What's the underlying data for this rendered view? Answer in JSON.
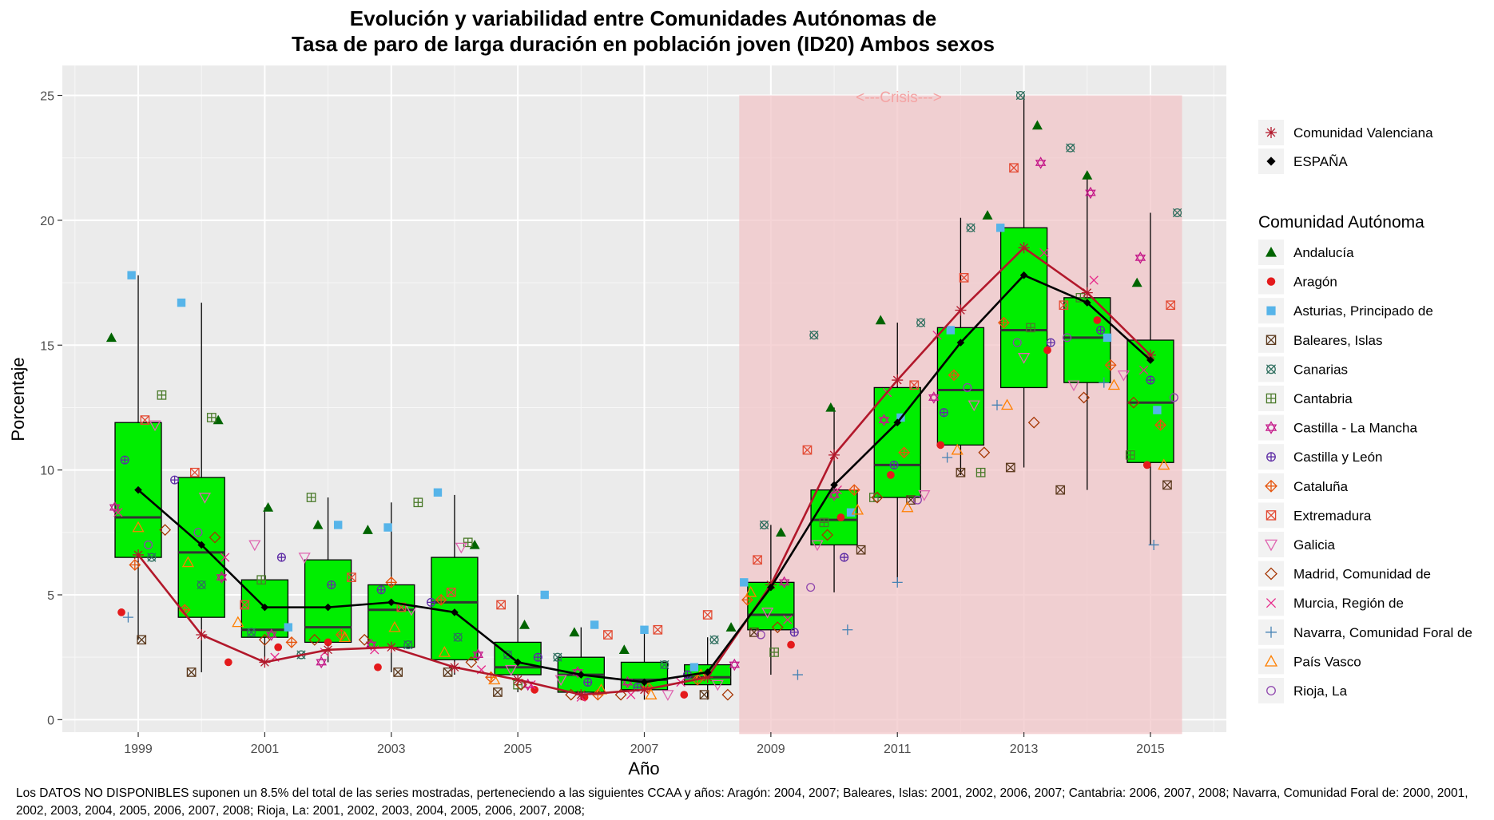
{
  "chart_data": {
    "type": "box",
    "title_line1": "Evolución y variabilidad entre Comunidades Autónomas de",
    "title_line2": "Tasa de paro de larga duración en población joven (ID20) Ambos sexos",
    "xlabel": "Año",
    "ylabel": "Porcentaje",
    "ylim": [
      -0.5,
      26.2
    ],
    "xlim": [
      1997.8,
      2016.2
    ],
    "x_ticks": [
      1999,
      2001,
      2003,
      2005,
      2007,
      2009,
      2011,
      2013,
      2015
    ],
    "y_ticks": [
      0,
      5,
      10,
      15,
      20,
      25
    ],
    "grid": true,
    "crisis": {
      "label": "<---Crisis--->",
      "x_start": 2008.5,
      "x_end": 2015.5,
      "y_top": 25
    },
    "colors": {
      "panel": "#ebebeb",
      "box_fill": "#00ee00",
      "crisis": "#f2c5c8",
      "espana": "#000000",
      "valenciana": "#b2182b"
    },
    "years": [
      1999,
      2000,
      2001,
      2002,
      2003,
      2004,
      2005,
      2006,
      2007,
      2008,
      2009,
      2010,
      2011,
      2012,
      2013,
      2014,
      2015
    ],
    "boxes": [
      {
        "year": 1999,
        "q1": 6.5,
        "median": 8.1,
        "q3": 11.9,
        "lo": 3.2,
        "hi": 17.8
      },
      {
        "year": 2000,
        "q1": 4.1,
        "median": 6.7,
        "q3": 9.7,
        "lo": 1.9,
        "hi": 16.7
      },
      {
        "year": 2001,
        "q1": 3.3,
        "median": 3.6,
        "q3": 5.6,
        "lo": 2.2,
        "hi": 8.5
      },
      {
        "year": 2002,
        "q1": 3.1,
        "median": 3.7,
        "q3": 6.4,
        "lo": 2.3,
        "hi": 8.9
      },
      {
        "year": 2003,
        "q1": 2.9,
        "median": 4.4,
        "q3": 5.4,
        "lo": 1.9,
        "hi": 8.7
      },
      {
        "year": 2004,
        "q1": 2.4,
        "median": 4.7,
        "q3": 6.5,
        "lo": 1.8,
        "hi": 9.0
      },
      {
        "year": 2005,
        "q1": 1.8,
        "median": 2.1,
        "q3": 3.1,
        "lo": 1.1,
        "hi": 5.0
      },
      {
        "year": 2006,
        "q1": 1.1,
        "median": 1.8,
        "q3": 2.5,
        "lo": 0.8,
        "hi": 3.7
      },
      {
        "year": 2007,
        "q1": 1.2,
        "median": 1.6,
        "q3": 2.3,
        "lo": 0.8,
        "hi": 3.6
      },
      {
        "year": 2008,
        "q1": 1.4,
        "median": 1.7,
        "q3": 2.2,
        "lo": 0.8,
        "hi": 3.3
      },
      {
        "year": 2009,
        "q1": 3.6,
        "median": 4.2,
        "q3": 5.5,
        "lo": 1.8,
        "hi": 7.8
      },
      {
        "year": 2010,
        "q1": 7.0,
        "median": 8.0,
        "q3": 9.2,
        "lo": 5.1,
        "hi": 12.5
      },
      {
        "year": 2011,
        "q1": 8.9,
        "median": 10.2,
        "q3": 13.3,
        "lo": 5.5,
        "hi": 15.9
      },
      {
        "year": 2012,
        "q1": 11.0,
        "median": 13.2,
        "q3": 15.7,
        "lo": 9.8,
        "hi": 20.1
      },
      {
        "year": 2013,
        "q1": 13.3,
        "median": 15.6,
        "q3": 19.7,
        "lo": 10.1,
        "hi": 25.0
      },
      {
        "year": 2014,
        "q1": 13.5,
        "median": 15.3,
        "q3": 16.9,
        "lo": 9.2,
        "hi": 21.8
      },
      {
        "year": 2015,
        "q1": 10.3,
        "median": 12.7,
        "q3": 15.2,
        "lo": 7.0,
        "hi": 20.3
      }
    ],
    "legend_top": [
      {
        "label": "Comunidad Valenciana",
        "symbol": "asterisk",
        "color": "#b2182b"
      },
      {
        "label": "ESPAÑA",
        "symbol": "diamond",
        "color": "#000000"
      }
    ],
    "legend_title": "Comunidad Autónoma",
    "legend": [
      {
        "label": "Andalucía",
        "symbol": "triangle",
        "color": "#006400"
      },
      {
        "label": "Aragón",
        "symbol": "dot",
        "color": "#e41a1c"
      },
      {
        "label": "Asturias, Principado de",
        "symbol": "square",
        "color": "#56b4e9"
      },
      {
        "label": "Baleares, Islas",
        "symbol": "square-x",
        "color": "#5c3a1e"
      },
      {
        "label": "Canarias",
        "symbol": "square-cross",
        "color": "#2f6f5f"
      },
      {
        "label": "Cantabria",
        "symbol": "square-plus",
        "color": "#4a7a2a"
      },
      {
        "label": "Castilla - La Mancha",
        "symbol": "star-david",
        "color": "#c51b8a"
      },
      {
        "label": "Castilla y León",
        "symbol": "circle-plus",
        "color": "#5e2ca5"
      },
      {
        "label": "Cataluña",
        "symbol": "diamond-plus",
        "color": "#e6550d"
      },
      {
        "label": "Extremadura",
        "symbol": "square-x",
        "color": "#e34a33"
      },
      {
        "label": "Galicia",
        "symbol": "triangle-down",
        "color": "#df65b0"
      },
      {
        "label": "Madrid, Comunidad de",
        "symbol": "diamond-open",
        "color": "#a63603"
      },
      {
        "label": "Murcia, Región de",
        "symbol": "x",
        "color": "#e7298a"
      },
      {
        "label": "Navarra, Comunidad Foral de",
        "symbol": "plus",
        "color": "#4682b4"
      },
      {
        "label": "País Vasco",
        "symbol": "triangle-open",
        "color": "#ff7f00"
      },
      {
        "label": "Rioja, La",
        "symbol": "circle-open",
        "color": "#8e44ad"
      }
    ],
    "espana": [
      9.2,
      7.0,
      4.5,
      4.5,
      4.7,
      4.3,
      2.3,
      1.8,
      1.5,
      1.9,
      5.3,
      9.4,
      11.9,
      15.1,
      17.8,
      16.7,
      14.4
    ],
    "valenciana": [
      6.6,
      3.4,
      2.3,
      2.8,
      2.9,
      2.1,
      1.6,
      1.0,
      1.2,
      1.7,
      5.4,
      10.6,
      13.6,
      16.4,
      18.9,
      17.1,
      14.6
    ],
    "ccaa_series": [
      {
        "name": "Andalucía",
        "values": [
          15.3,
          12.0,
          8.5,
          7.8,
          7.6,
          7.0,
          3.8,
          3.5,
          2.8,
          3.7,
          7.5,
          12.5,
          16.0,
          20.2,
          23.8,
          21.8,
          17.5
        ]
      },
      {
        "name": "Aragón",
        "values": [
          4.3,
          2.3,
          2.9,
          3.1,
          2.1,
          null,
          1.2,
          0.9,
          null,
          1.0,
          3.0,
          8.1,
          9.8,
          11.0,
          14.8,
          16.0,
          10.2
        ]
      },
      {
        "name": "Asturias, Principado de",
        "values": [
          17.8,
          16.7,
          3.7,
          7.8,
          7.7,
          9.1,
          5.0,
          3.8,
          3.6,
          2.1,
          5.5,
          8.3,
          12.1,
          15.6,
          19.7,
          15.3,
          12.4
        ]
      },
      {
        "name": "Baleares, Islas",
        "values": [
          3.2,
          1.9,
          null,
          null,
          1.9,
          1.9,
          1.1,
          null,
          null,
          1.0,
          3.5,
          6.8,
          8.8,
          9.9,
          10.1,
          9.2,
          9.4
        ]
      },
      {
        "name": "Canarias",
        "values": [
          6.5,
          5.4,
          3.5,
          2.6,
          3.0,
          3.3,
          2.6,
          2.5,
          2.2,
          3.2,
          7.8,
          15.4,
          15.9,
          19.7,
          25.0,
          22.9,
          20.3
        ]
      },
      {
        "name": "Cantabria",
        "values": [
          13.0,
          12.1,
          5.6,
          8.9,
          8.7,
          7.1,
          1.4,
          null,
          null,
          null,
          2.7,
          7.9,
          8.9,
          9.9,
          15.7,
          16.9,
          10.6
        ]
      },
      {
        "name": "Castilla - La Mancha",
        "values": [
          8.5,
          5.7,
          3.4,
          2.3,
          3.0,
          2.6,
          1.4,
          1.9,
          1.5,
          2.2,
          5.5,
          9.0,
          12.0,
          12.9,
          22.3,
          21.1,
          18.5
        ]
      },
      {
        "name": "Castilla y León",
        "values": [
          10.4,
          9.6,
          6.5,
          5.4,
          5.2,
          4.7,
          2.5,
          1.5,
          1.3,
          1.8,
          3.5,
          6.5,
          10.2,
          12.3,
          15.1,
          15.6,
          13.6
        ]
      },
      {
        "name": "Cataluña",
        "values": [
          6.2,
          4.4,
          3.1,
          3.4,
          5.5,
          4.8,
          1.7,
          1.0,
          1.3,
          1.6,
          4.8,
          9.2,
          10.7,
          13.8,
          15.9,
          14.2,
          11.8
        ]
      },
      {
        "name": "Extremadura",
        "values": [
          12.0,
          9.9,
          4.6,
          5.7,
          4.5,
          5.1,
          4.6,
          3.4,
          3.6,
          4.2,
          6.4,
          10.8,
          13.4,
          17.7,
          22.1,
          16.6,
          16.6
        ]
      },
      {
        "name": "Galicia",
        "values": [
          11.8,
          8.9,
          7.0,
          6.5,
          4.4,
          6.9,
          2.0,
          1.6,
          1.0,
          1.4,
          4.3,
          7.0,
          9.0,
          12.6,
          14.5,
          13.4,
          13.8
        ]
      },
      {
        "name": "Madrid, Comunidad de",
        "values": [
          7.6,
          7.3,
          3.2,
          3.2,
          3.2,
          2.3,
          1.4,
          1.0,
          1.0,
          1.0,
          3.7,
          7.4,
          8.9,
          10.7,
          11.9,
          12.9,
          12.7
        ]
      },
      {
        "name": "Murcia, Región de",
        "values": [
          8.3,
          6.5,
          2.5,
          2.7,
          2.8,
          2.0,
          1.4,
          0.9,
          1.0,
          1.5,
          4.0,
          9.2,
          13.1,
          15.4,
          18.7,
          17.6,
          14.0
        ]
      },
      {
        "name": "Navarra, Comunidad Foral de",
        "values": [
          4.1,
          null,
          null,
          null,
          null,
          null,
          null,
          null,
          null,
          null,
          1.8,
          3.6,
          5.5,
          10.5,
          12.6,
          13.5,
          7.0
        ]
      },
      {
        "name": "País Vasco",
        "values": [
          7.7,
          6.3,
          3.9,
          3.3,
          3.7,
          2.7,
          1.6,
          1.2,
          1.0,
          1.8,
          5.1,
          8.4,
          8.5,
          10.8,
          12.6,
          13.4,
          10.2
        ]
      },
      {
        "name": "Rioja, La",
        "values": [
          7.0,
          7.5,
          null,
          null,
          null,
          null,
          null,
          null,
          null,
          null,
          3.4,
          5.3,
          8.8,
          13.3,
          15.1,
          15.3,
          12.9
        ]
      }
    ]
  },
  "footnote": "Los DATOS NO DISPONIBLES suponen un 8.5% del total de las series mostradas, perteneciendo a las siguientes CCAA y años: Aragón: 2004, 2007; Baleares, Islas: 2001, 2002, 2006, 2007; Cantabria: 2006, 2007, 2008; Navarra, Comunidad Foral de: 2000, 2001, 2002, 2003, 2004, 2005, 2006, 2007, 2008; Rioja, La: 2001, 2002, 2003, 2004, 2005, 2006, 2007, 2008;"
}
